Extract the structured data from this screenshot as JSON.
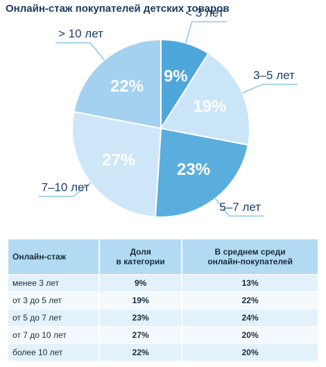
{
  "chart_data": {
    "type": "pie",
    "title": "Онлайн-стаж покупателей детских товаров",
    "categories": [
      "< 3 лет",
      "3–5 лет",
      "5–7 лет",
      "7–10 лет",
      "> 10 лет"
    ],
    "values": [
      9,
      19,
      23,
      27,
      22
    ],
    "value_labels": [
      "9%",
      "19%",
      "23%",
      "27%",
      "22%"
    ],
    "colors": [
      "#4ea7db",
      "#c9e5f7",
      "#5aaedd",
      "#cde7f8",
      "#a3d1ef"
    ]
  },
  "table": {
    "header": [
      "Онлайн-стаж",
      "Доля\nв категории",
      "В среднем среди\nонлайн-покупателей"
    ],
    "rows": [
      [
        "менее 3 лет",
        "9%",
        "13%"
      ],
      [
        "от 3 до 5 лет",
        "19%",
        "22%"
      ],
      [
        "от 5 до 7 лет",
        "23%",
        "24%"
      ],
      [
        "от 7 до 10 лет",
        "27%",
        "20%"
      ],
      [
        "более 10 лет",
        "22%",
        "20%"
      ]
    ]
  }
}
